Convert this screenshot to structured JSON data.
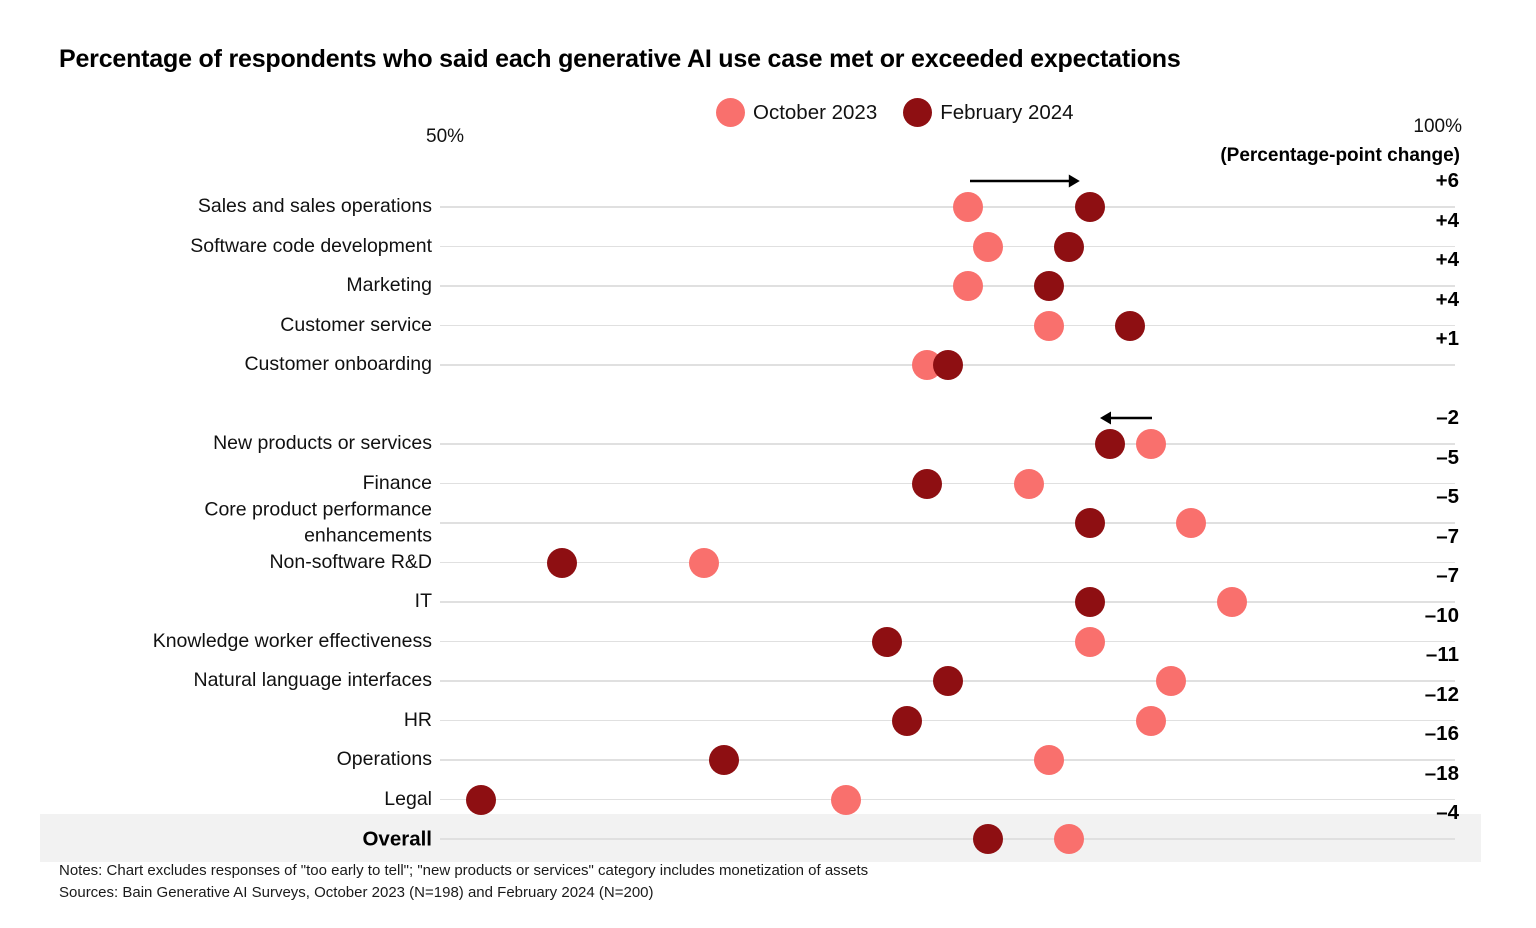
{
  "title": "Percentage of respondents who said each generative AI use case met or exceeded expectations",
  "notes": {
    "line1": "Notes: Chart excludes responses of \"too early to tell\"; \"new products or services\" category includes monetization of assets",
    "line2": "Sources: Bain Generative AI Surveys, October 2023 (N=198) and February 2024 (N=200)"
  },
  "colors": {
    "october_2023": "#f9706d",
    "february_2024": "#8e0f12",
    "row_line": "#e0e0e0",
    "highlight_band": "#f2f2f2"
  },
  "chart_data": {
    "type": "dumbbell-dot-plot",
    "title": "Percentage of respondents who said each generative AI use case met or exceeded expectations",
    "x_axis": {
      "min": 50,
      "max": 100,
      "left_label": "50%",
      "right_label": "100%"
    },
    "change_column_header": "(Percentage-point change)",
    "legend_position": "top-center",
    "grid": "horizontal-row-lines",
    "series": [
      {
        "name": "October 2023",
        "color": "#f9706d"
      },
      {
        "name": "February 2024",
        "color": "#8e0f12"
      }
    ],
    "groups": [
      {
        "gap_after": true,
        "rows": [
          {
            "label": "Sales and sales operations",
            "oct": 76,
            "feb": 82,
            "change": "+6",
            "arrow": "right"
          },
          {
            "label": "Software code development",
            "oct": 77,
            "feb": 81,
            "change": "+4"
          },
          {
            "label": "Marketing",
            "oct": 76,
            "feb": 80,
            "change": "+4"
          },
          {
            "label": "Customer service",
            "oct": 80,
            "feb": 84,
            "change": "+4"
          },
          {
            "label": "Customer onboarding",
            "oct": 74,
            "feb": 75,
            "change": "+1"
          }
        ]
      },
      {
        "gap_after": false,
        "rows": [
          {
            "label": "New products or services",
            "oct": 85,
            "feb": 83,
            "change": "–2",
            "arrow": "left"
          },
          {
            "label": "Finance",
            "oct": 79,
            "feb": 74,
            "change": "–5"
          },
          {
            "label": "Core product performance\nenhancements",
            "oct": 87,
            "feb": 82,
            "change": "–5"
          },
          {
            "label": "Non-software R&D",
            "oct": 63,
            "feb": 56,
            "change": "–7"
          },
          {
            "label": "IT",
            "oct": 89,
            "feb": 82,
            "change": "–7"
          },
          {
            "label": "Knowledge worker effectiveness",
            "oct": 82,
            "feb": 72,
            "change": "–10"
          },
          {
            "label": "Natural language interfaces",
            "oct": 86,
            "feb": 75,
            "change": "–11"
          },
          {
            "label": "HR",
            "oct": 85,
            "feb": 73,
            "change": "–12"
          },
          {
            "label": "Operations",
            "oct": 80,
            "feb": 64,
            "change": "–16"
          },
          {
            "label": "Legal",
            "oct": 70,
            "feb": 52,
            "change": "–18"
          }
        ]
      },
      {
        "gap_after": false,
        "rows": [
          {
            "label": "Overall",
            "oct": 81,
            "feb": 77,
            "change": "–4",
            "emphasis": true,
            "highlight": true
          }
        ]
      }
    ]
  }
}
